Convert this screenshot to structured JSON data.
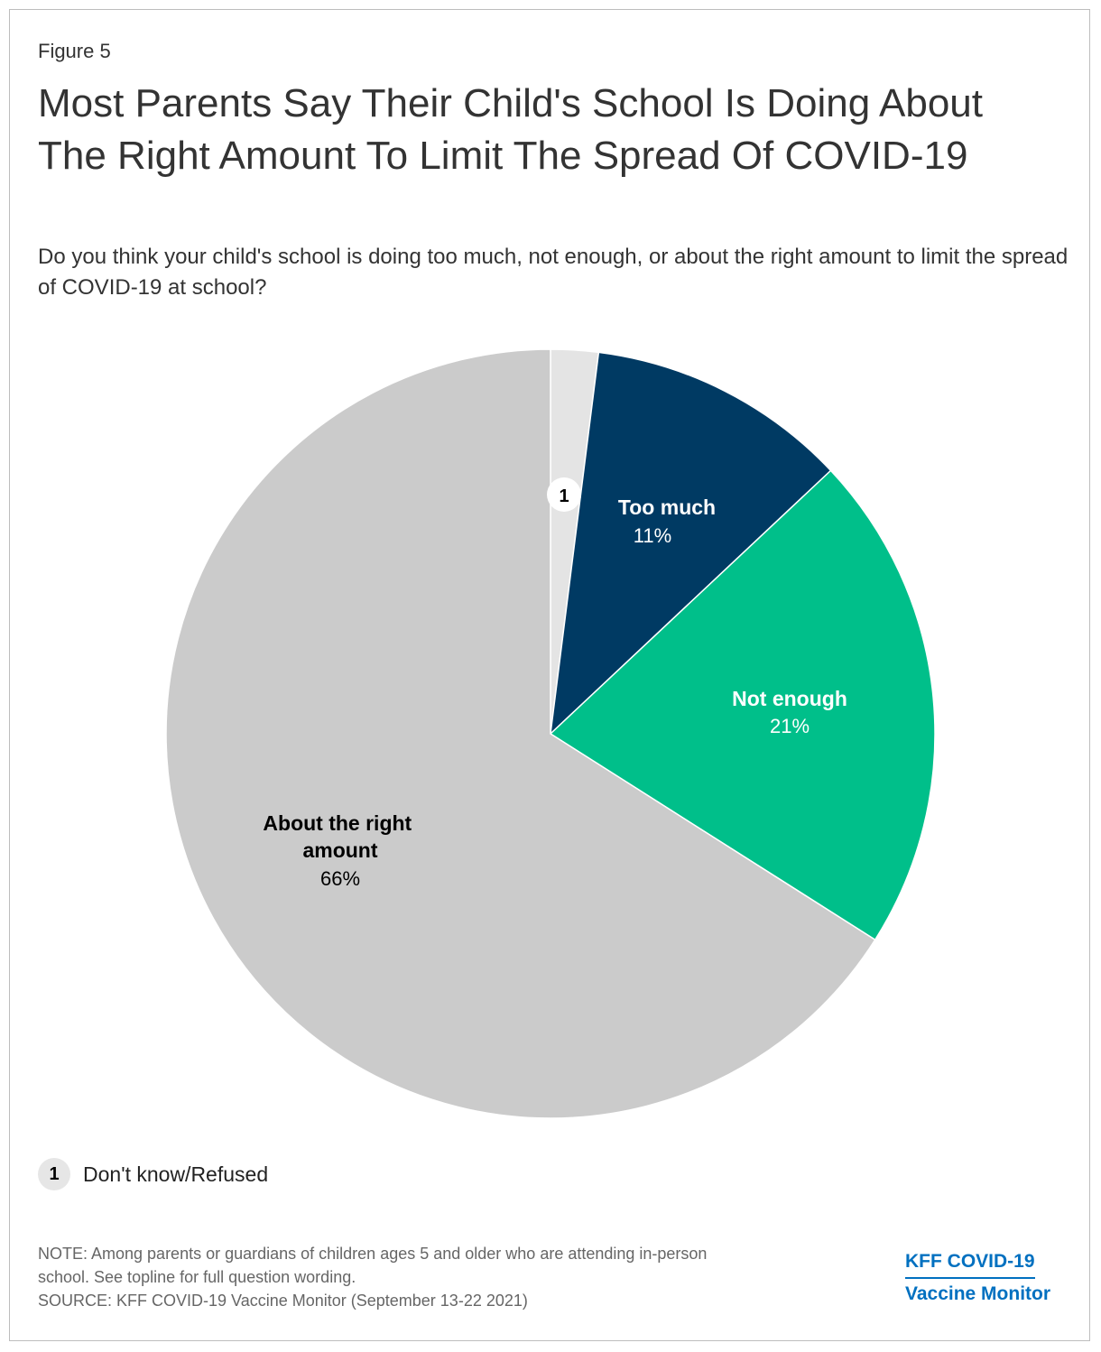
{
  "figure_label": "Figure 5",
  "title": "Most Parents Say Their Child's School Is Doing About The Right Amount To Limit The Spread Of COVID-19",
  "subtitle": "Do you think your child's school is doing too much, not enough, or about the right amount to limit the spread of COVID-19 at school?",
  "chart_data": {
    "type": "pie",
    "title": "Most Parents Say Their Child's School Is Doing About The Right Amount To Limit The Spread Of COVID-19",
    "slices": [
      {
        "label": "Don't know/Refused",
        "value": 2,
        "display": "1",
        "color": "#e4e4e4"
      },
      {
        "label": "Too much",
        "value": 11,
        "display": "11%",
        "color": "#003a63"
      },
      {
        "label": "Not enough",
        "value": 21,
        "display": "21%",
        "color": "#00bf8a"
      },
      {
        "label": "About the right amount",
        "value": 66,
        "display": "66%",
        "color": "#cbcbcb"
      }
    ]
  },
  "legend": {
    "badge": "1",
    "text": "Don't know/Refused"
  },
  "note_lines": [
    "NOTE: Among parents or guardians of children ages 5 and older who are attending in-person",
    "school. See topline for full question wording.",
    "SOURCE: KFF COVID-19 Vaccine Monitor (September 13-22 2021)"
  ],
  "logo": {
    "line1": "KFF COVID-19",
    "line2": "Vaccine Monitor"
  }
}
